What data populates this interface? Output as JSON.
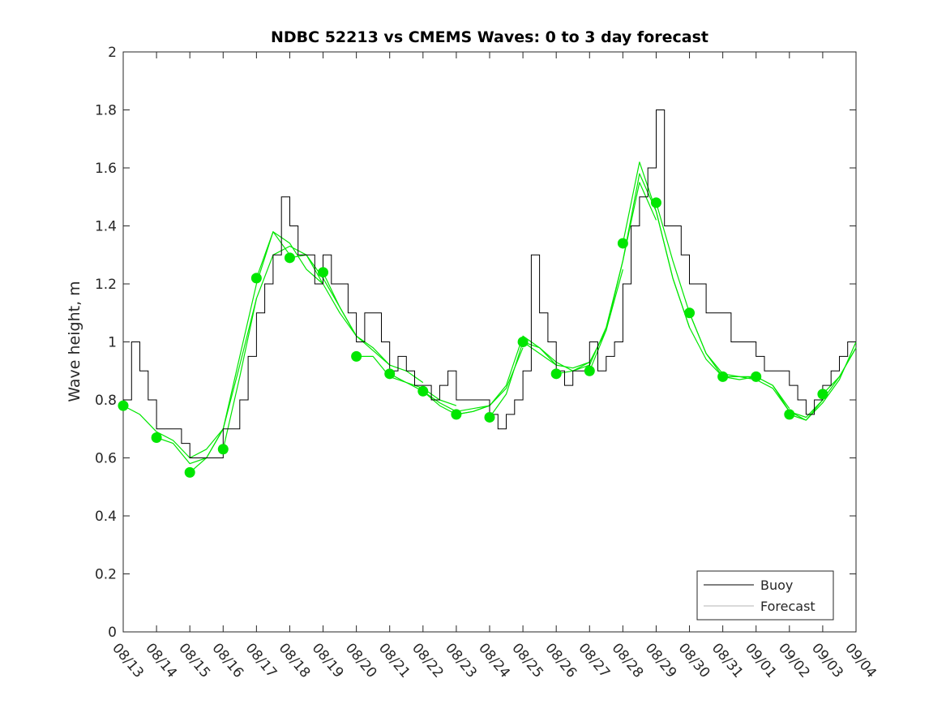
{
  "chart_data": {
    "type": "line",
    "title": "NDBC 52213 vs CMEMS Waves: 0 to 3 day forecast",
    "xlabel": "",
    "ylabel": "Wave height, m",
    "ylim": [
      0,
      2
    ],
    "yticks": [
      "0",
      "0.2",
      "0.4",
      "0.6",
      "0.8",
      "1",
      "1.2",
      "1.4",
      "1.6",
      "1.8",
      "2"
    ],
    "xticks": [
      "08/13",
      "08/14",
      "08/15",
      "08/16",
      "08/17",
      "08/18",
      "08/19",
      "08/20",
      "08/21",
      "08/22",
      "08/23",
      "08/24",
      "08/25",
      "08/26",
      "08/27",
      "08/28",
      "08/29",
      "08/30",
      "08/31",
      "09/01",
      "09/02",
      "09/03",
      "09/04"
    ],
    "xlim_days": [
      0,
      22
    ],
    "legend": {
      "placement": "bottom-right",
      "entries": [
        "Buoy",
        "Forecast"
      ]
    },
    "colors": {
      "buoy": "#000000",
      "forecast": "#00e600",
      "dots": "#00e600"
    },
    "buoy": {
      "step_hours": 6,
      "values": [
        0.8,
        1.0,
        0.9,
        0.8,
        0.7,
        0.7,
        0.7,
        0.65,
        0.6,
        0.6,
        0.6,
        0.6,
        0.7,
        0.7,
        0.8,
        0.95,
        1.1,
        1.2,
        1.3,
        1.5,
        1.4,
        1.3,
        1.3,
        1.2,
        1.3,
        1.2,
        1.2,
        1.1,
        1.0,
        1.1,
        1.1,
        1.0,
        0.9,
        0.95,
        0.9,
        0.85,
        0.85,
        0.8,
        0.85,
        0.9,
        0.8,
        0.8,
        0.8,
        0.8,
        0.75,
        0.7,
        0.75,
        0.8,
        0.9,
        1.3,
        1.1,
        1.0,
        0.9,
        0.85,
        0.9,
        0.9,
        1.0,
        0.9,
        0.95,
        1.0,
        1.2,
        1.4,
        1.5,
        1.6,
        1.8,
        1.4,
        1.4,
        1.3,
        1.2,
        1.2,
        1.1,
        1.1,
        1.1,
        1.0,
        1.0,
        1.0,
        0.95,
        0.9,
        0.9,
        0.9,
        0.85,
        0.8,
        0.75,
        0.8,
        0.85,
        0.9,
        0.95,
        1.0,
        1.0
      ]
    },
    "forecast_initial_values": [
      0.78,
      0.67,
      0.55,
      0.63,
      1.22,
      1.29,
      1.24,
      0.95,
      0.89,
      0.83,
      0.75,
      0.74,
      1.0,
      0.89,
      0.9,
      1.34,
      1.48,
      1.1,
      0.88,
      0.88,
      0.75,
      0.82
    ],
    "forecasts": {
      "step_hours": 12,
      "series": [
        [
          0.78,
          0.75,
          0.69,
          0.66,
          0.6,
          0.63,
          0.7
        ],
        [
          0.67,
          0.65,
          0.58,
          0.6,
          0.7,
          0.92,
          1.15
        ],
        [
          0.55,
          0.6,
          0.7,
          0.95,
          1.2,
          1.38,
          1.3
        ],
        [
          0.63,
          0.88,
          1.15,
          1.3,
          1.33,
          1.3,
          1.2
        ],
        [
          1.22,
          1.38,
          1.34,
          1.25,
          1.2,
          1.1,
          1.02
        ],
        [
          1.29,
          1.3,
          1.22,
          1.12,
          1.02,
          0.98,
          0.92
        ],
        [
          1.24,
          1.12,
          1.02,
          0.97,
          0.92,
          0.9,
          0.86
        ],
        [
          0.95,
          0.95,
          0.88,
          0.86,
          0.84,
          0.8,
          0.78
        ],
        [
          0.89,
          0.86,
          0.83,
          0.79,
          0.76,
          0.77,
          0.78
        ],
        [
          0.83,
          0.78,
          0.75,
          0.76,
          0.78,
          0.84,
          0.98
        ],
        [
          0.75,
          0.76,
          0.78,
          0.85,
          1.02,
          0.98,
          0.92
        ],
        [
          0.74,
          0.82,
          1.0,
          0.98,
          0.93,
          0.9,
          0.93
        ],
        [
          1.0,
          0.96,
          0.92,
          0.91,
          0.93,
          1.04,
          1.25
        ],
        [
          0.89,
          0.9,
          0.92,
          1.05,
          1.28,
          1.55,
          1.42
        ],
        [
          0.9,
          1.04,
          1.28,
          1.58,
          1.45,
          1.22,
          1.05
        ],
        [
          1.34,
          1.62,
          1.45,
          1.22,
          1.05,
          0.94,
          0.88
        ],
        [
          1.48,
          1.28,
          1.1,
          0.96,
          0.88,
          0.87,
          0.88
        ],
        [
          1.1,
          0.96,
          0.89,
          0.88,
          0.88,
          0.85,
          0.77
        ],
        [
          0.88,
          0.88,
          0.87,
          0.84,
          0.76,
          0.74,
          0.8
        ],
        [
          0.88,
          0.85,
          0.76,
          0.73,
          0.8,
          0.88,
          0.98
        ],
        [
          0.75,
          0.73,
          0.79,
          0.87,
          1.0
        ],
        [
          0.82,
          0.88,
          0.98
        ]
      ]
    }
  }
}
